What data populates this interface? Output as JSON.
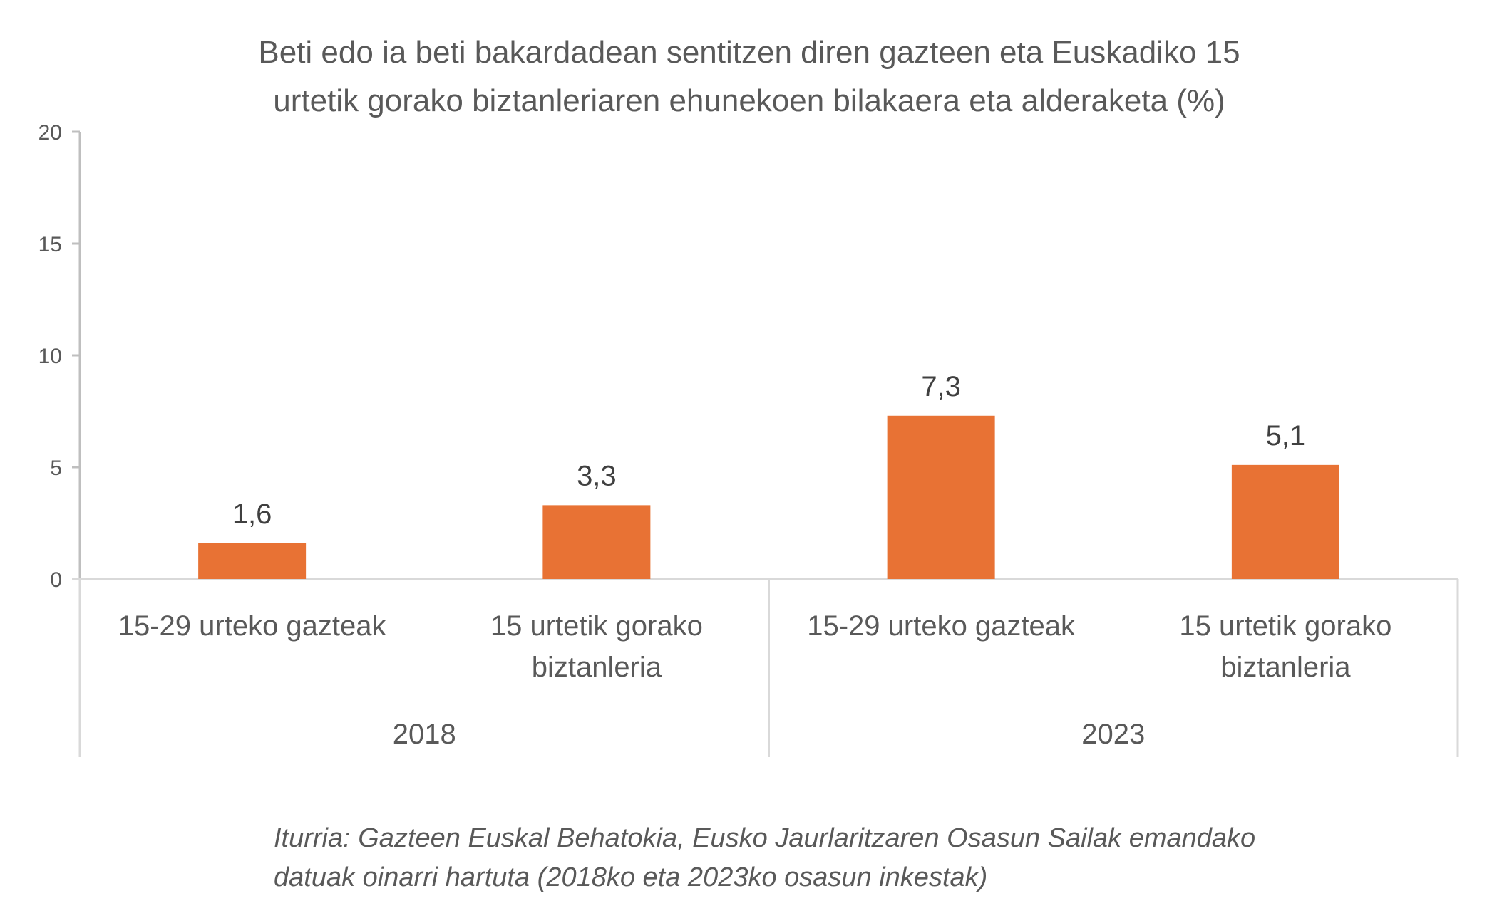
{
  "chart_data": {
    "type": "bar",
    "title_lines": [
      "Beti edo ia beti bakardadean sentitzen diren gazteen eta Euskadiko 15",
      "urtetik gorako biztanleriaren ehunekoen bilakaera eta alderaketa (%)"
    ],
    "groups": [
      {
        "label": "2018",
        "categories": [
          {
            "label_lines": [
              "15-29 urteko gazteak"
            ],
            "value": 1.6,
            "data_label": "1,6"
          },
          {
            "label_lines": [
              "15 urtetik gorako",
              "biztanleria"
            ],
            "value": 3.3,
            "data_label": "3,3"
          }
        ]
      },
      {
        "label": "2023",
        "categories": [
          {
            "label_lines": [
              "15-29 urteko gazteak"
            ],
            "value": 7.3,
            "data_label": "7,3"
          },
          {
            "label_lines": [
              "15 urtetik gorako",
              "biztanleria"
            ],
            "value": 5.1,
            "data_label": "5,1"
          }
        ]
      }
    ],
    "ylim": [
      0,
      20
    ],
    "yticks": [
      "0",
      "5",
      "10",
      "15",
      "20"
    ],
    "grid": false,
    "legend": "none",
    "bar_color": "#E87234",
    "axis_color": "#BFBFBF",
    "text_color": "#595959"
  },
  "source_lines": [
    "Iturria: Gazteen Euskal Behatokia, Eusko Jaurlaritzaren Osasun Sailak emandako",
    "datuak oinarri hartuta (2018ko eta 2023ko osasun inkestak)"
  ]
}
